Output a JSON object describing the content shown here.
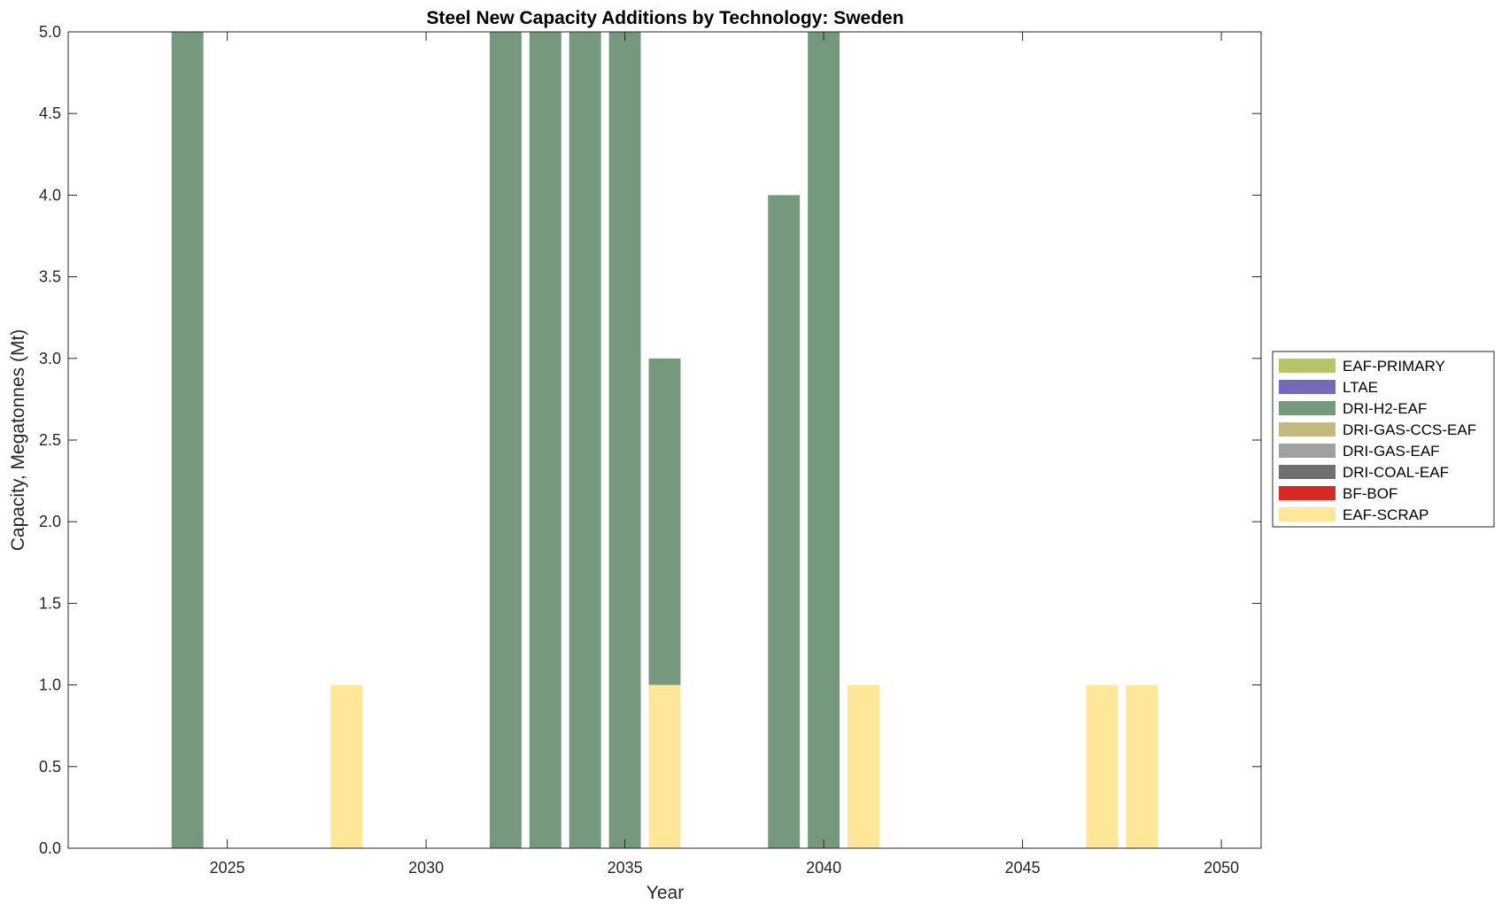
{
  "chart_data": {
    "type": "bar",
    "stacked": true,
    "title": "Steel New Capacity Additions by Technology: Sweden",
    "xlabel": "Year",
    "ylabel": "Capacity, Megatonnes (Mt)",
    "xlim": [
      2021,
      2051
    ],
    "ylim": [
      0,
      5
    ],
    "xticks": [
      2025,
      2030,
      2035,
      2040,
      2045,
      2050
    ],
    "yticks": [
      0.0,
      0.5,
      1.0,
      1.5,
      2.0,
      2.5,
      3.0,
      3.5,
      4.0,
      4.5,
      5.0
    ],
    "ytick_labels": [
      "0.0",
      "0.5",
      "1.0",
      "1.5",
      "2.0",
      "2.5",
      "3.0",
      "3.5",
      "4.0",
      "4.5",
      "5.0"
    ],
    "grid": false,
    "legend_position": "right",
    "x": [
      2024,
      2025,
      2026,
      2027,
      2028,
      2029,
      2030,
      2031,
      2032,
      2033,
      2034,
      2035,
      2036,
      2037,
      2038,
      2039,
      2040,
      2041,
      2042,
      2043,
      2044,
      2045,
      2046,
      2047,
      2048
    ],
    "series": [
      {
        "name": "EAF-SCRAP",
        "color": "#FFE699",
        "values": [
          0,
          0,
          0,
          0,
          1,
          0,
          0,
          0,
          0,
          0,
          0,
          0,
          1,
          0,
          0,
          0,
          0,
          1,
          0,
          0,
          0,
          0,
          0,
          1,
          1
        ]
      },
      {
        "name": "BF-BOF",
        "color": "#D62A24",
        "values": [
          0,
          0,
          0,
          0,
          0,
          0,
          0,
          0,
          0,
          0,
          0,
          0,
          0,
          0,
          0,
          0,
          0,
          0,
          0,
          0,
          0,
          0,
          0,
          0,
          0
        ]
      },
      {
        "name": "DRI-COAL-EAF",
        "color": "#6F6F6F",
        "values": [
          0,
          0,
          0,
          0,
          0,
          0,
          0,
          0,
          0,
          0,
          0,
          0,
          0,
          0,
          0,
          0,
          0,
          0,
          0,
          0,
          0,
          0,
          0,
          0,
          0
        ]
      },
      {
        "name": "DRI-GAS-EAF",
        "color": "#A0A0A0",
        "values": [
          0,
          0,
          0,
          0,
          0,
          0,
          0,
          0,
          0,
          0,
          0,
          0,
          0,
          0,
          0,
          0,
          0,
          0,
          0,
          0,
          0,
          0,
          0,
          0,
          0
        ]
      },
      {
        "name": "DRI-GAS-CCS-EAF",
        "color": "#C2B980",
        "values": [
          0,
          0,
          0,
          0,
          0,
          0,
          0,
          0,
          0,
          0,
          0,
          0,
          0,
          0,
          0,
          0,
          0,
          0,
          0,
          0,
          0,
          0,
          0,
          0,
          0
        ]
      },
      {
        "name": "DRI-H2-EAF",
        "color": "#76987D",
        "values": [
          5,
          0,
          0,
          0,
          0,
          0,
          0,
          0,
          5,
          5,
          5,
          5,
          2,
          0,
          0,
          4,
          5,
          0,
          0,
          0,
          0,
          0,
          0,
          0,
          0
        ]
      },
      {
        "name": "LTAE",
        "color": "#7269B8",
        "values": [
          0,
          0,
          0,
          0,
          0,
          0,
          0,
          0,
          0,
          0,
          0,
          0,
          0,
          0,
          0,
          0,
          0,
          0,
          0,
          0,
          0,
          0,
          0,
          0,
          0
        ]
      },
      {
        "name": "EAF-PRIMARY",
        "color": "#B8C468",
        "values": [
          0,
          0,
          0,
          0,
          0,
          0,
          0,
          0,
          0,
          0,
          0,
          0,
          0,
          0,
          0,
          0,
          0,
          0,
          0,
          0,
          0,
          0,
          0,
          0,
          0
        ]
      }
    ],
    "legend_order": [
      "EAF-PRIMARY",
      "LTAE",
      "DRI-H2-EAF",
      "DRI-GAS-CCS-EAF",
      "DRI-GAS-EAF",
      "DRI-COAL-EAF",
      "BF-BOF",
      "EAF-SCRAP"
    ]
  }
}
